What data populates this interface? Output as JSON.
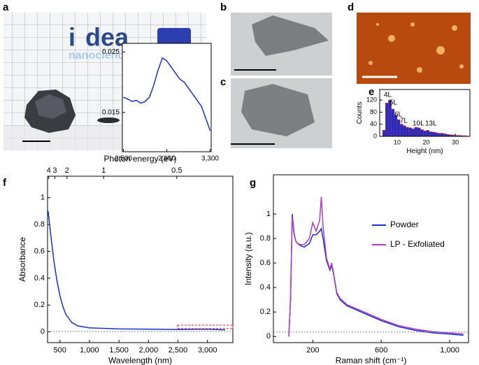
{
  "panel_labels": [
    "a",
    "b",
    "c",
    "d",
    "e",
    "f",
    "g"
  ],
  "photo_text": [
    "i",
    "dea",
    "nanociencia"
  ],
  "chart_data": [
    {
      "type": "histogram",
      "xlabel": "Height (nm)",
      "ylabel": "Counts",
      "bins": [
        5,
        6,
        7,
        8,
        9,
        10,
        11,
        12,
        13,
        14,
        15,
        16,
        17,
        18,
        19,
        20,
        21,
        22,
        23,
        24,
        25,
        26,
        27,
        28,
        29,
        30,
        31,
        32,
        33,
        34
      ],
      "values": [
        20,
        110,
        120,
        90,
        70,
        55,
        40,
        35,
        30,
        28,
        25,
        30,
        28,
        22,
        18,
        20,
        15,
        14,
        12,
        10,
        10,
        8,
        6,
        5,
        4,
        3,
        3,
        2,
        2
      ],
      "color": "#1a2fd0",
      "edge_color": "#d0202a",
      "xlim": [
        4,
        35
      ],
      "xticks": [
        10,
        20,
        30
      ],
      "ylim": [
        0,
        155
      ],
      "yticks": [
        0,
        40,
        80,
        120
      ],
      "annotations": [
        "4L",
        "5L",
        "6L",
        "7L",
        "10L",
        "13L"
      ]
    },
    {
      "type": "line",
      "xlabel": "Wavelength (nm)",
      "ylabel": "Absorbance",
      "x2label": "Photon energy (eV)",
      "x": [
        300,
        350,
        400,
        450,
        500,
        550,
        600,
        700,
        800,
        1000,
        1500,
        2000,
        2500,
        3000,
        3300
      ],
      "values": [
        0.9,
        0.7,
        0.52,
        0.38,
        0.27,
        0.19,
        0.13,
        0.07,
        0.045,
        0.03,
        0.022,
        0.02,
        0.018,
        0.02,
        0.015
      ],
      "color": "#1a2fd0",
      "xlim": [
        290,
        3430
      ],
      "xticks": [
        500,
        {
          "value": 1000,
          "label": "1,000"
        },
        {
          "value": 1500,
          "label": "1,500"
        },
        {
          "value": 2000,
          "label": "2,000"
        },
        {
          "value": 2500,
          "label": "2,500"
        },
        {
          "value": 3000,
          "label": "3,000"
        }
      ],
      "x2ticks": [
        4,
        3,
        2,
        1,
        0.5
      ],
      "ylim": [
        -0.08,
        1.16
      ],
      "yticks": [
        0,
        0.2,
        0.4,
        0.6,
        0.8,
        1
      ]
    },
    {
      "type": "line",
      "x": [
        2500,
        2540,
        2580,
        2620,
        2660,
        2700,
        2740,
        2780,
        2820,
        2860,
        2900,
        2940,
        2980,
        3020,
        3060,
        3100,
        3140,
        3180,
        3220,
        3260,
        3300
      ],
      "values": [
        0.0175,
        0.0172,
        0.0168,
        0.017,
        0.0165,
        0.0168,
        0.0175,
        0.0195,
        0.022,
        0.024,
        0.0235,
        0.0225,
        0.0215,
        0.0205,
        0.02,
        0.019,
        0.018,
        0.017,
        0.016,
        0.014,
        0.012
      ],
      "color": "#1a2fd0",
      "xlim": [
        2490,
        3310
      ],
      "xticks": [
        {
          "value": 2500,
          "label": "2,500"
        },
        {
          "value": 2900,
          "label": "2,900"
        },
        {
          "value": 3300,
          "label": "3,300"
        }
      ],
      "ylim": [
        0.0085,
        0.0264
      ],
      "yticks": [
        0.015,
        0.025
      ]
    },
    {
      "type": "line",
      "xlabel": "Raman shift (cm⁻¹)",
      "ylabel": "Intensity (a.u.)",
      "x": [
        60,
        70,
        80,
        90,
        100,
        110,
        130,
        150,
        180,
        200,
        220,
        240,
        250,
        260,
        280,
        300,
        310,
        320,
        340,
        360,
        400,
        450,
        500,
        600,
        700,
        800,
        900,
        1000,
        1080
      ],
      "series": [
        {
          "name": "Powder",
          "color": "#1a2fd0",
          "values": [
            0,
            0.3,
            1.0,
            0.85,
            0.78,
            0.76,
            0.74,
            0.73,
            0.76,
            0.83,
            0.83,
            0.86,
            0.88,
            0.8,
            0.62,
            0.54,
            0.58,
            0.52,
            0.35,
            0.3,
            0.25,
            0.22,
            0.19,
            0.13,
            0.08,
            0.05,
            0.03,
            0.02,
            0.01
          ]
        },
        {
          "name": "LP - Exfoliated",
          "color": "#b03cc0",
          "values": [
            0,
            0.3,
            0.98,
            0.84,
            0.78,
            0.76,
            0.75,
            0.75,
            0.8,
            0.93,
            0.86,
            0.95,
            1.14,
            0.9,
            0.64,
            0.55,
            0.6,
            0.53,
            0.36,
            0.31,
            0.26,
            0.23,
            0.2,
            0.14,
            0.09,
            0.06,
            0.04,
            0.03,
            0.02
          ]
        }
      ],
      "xlim": [
        -30,
        1110
      ],
      "xticks": [
        200,
        600,
        {
          "value": 1000,
          "label": "1,000"
        }
      ],
      "ylim": [
        -0.05,
        1.32
      ],
      "yticks": [
        0,
        0.2,
        0.4,
        0.6,
        0.8,
        1
      ]
    }
  ]
}
